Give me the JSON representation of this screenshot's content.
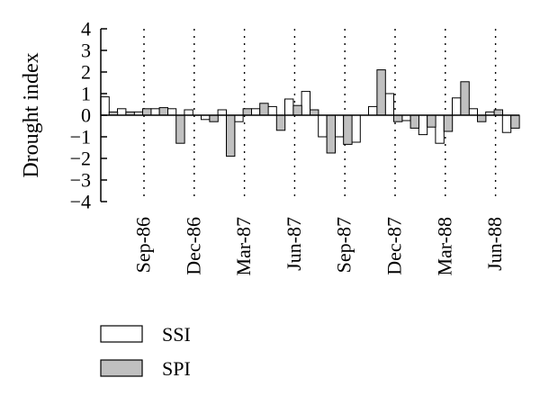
{
  "chart_data": {
    "type": "bar",
    "ylabel": "Drought index",
    "ylim": [
      -4,
      4
    ],
    "yticks": [
      4,
      3,
      2,
      1,
      0,
      -1,
      -2,
      -3,
      -4
    ],
    "grid": "vertical dotted lines at labeled months",
    "x_tick_labels": [
      "Sep-86",
      "Dec-86",
      "Mar-87",
      "Jun-87",
      "Sep-87",
      "Dec-87",
      "Mar-88",
      "Jun-88"
    ],
    "x_tick_month_index": [
      2,
      5,
      8,
      11,
      14,
      17,
      20,
      23
    ],
    "series": [
      {
        "name": "SSI",
        "color": "#ffffff",
        "values": [
          0.85,
          0.3,
          0.15,
          0.3,
          0.3,
          0.25,
          -0.2,
          0.25,
          -0.3,
          0.3,
          0.4,
          0.75,
          1.1,
          -1.0,
          -1.0,
          -1.25,
          0.4,
          1.0,
          -0.25,
          -0.9,
          -1.3,
          0.8,
          0.3,
          0.15,
          -0.8
        ]
      },
      {
        "name": "SPI",
        "color": "#c0c0c0",
        "values": [
          0.15,
          0.15,
          0.3,
          0.35,
          -1.3,
          0.0,
          -0.3,
          -1.9,
          0.3,
          0.55,
          -0.7,
          0.45,
          0.25,
          -1.75,
          -1.35,
          0.0,
          2.1,
          -0.3,
          -0.6,
          -0.55,
          -0.75,
          1.55,
          -0.3,
          0.25,
          -0.6
        ]
      }
    ],
    "legend": {
      "placement": "bottom-left",
      "entries": [
        "SSI",
        "SPI"
      ]
    }
  }
}
